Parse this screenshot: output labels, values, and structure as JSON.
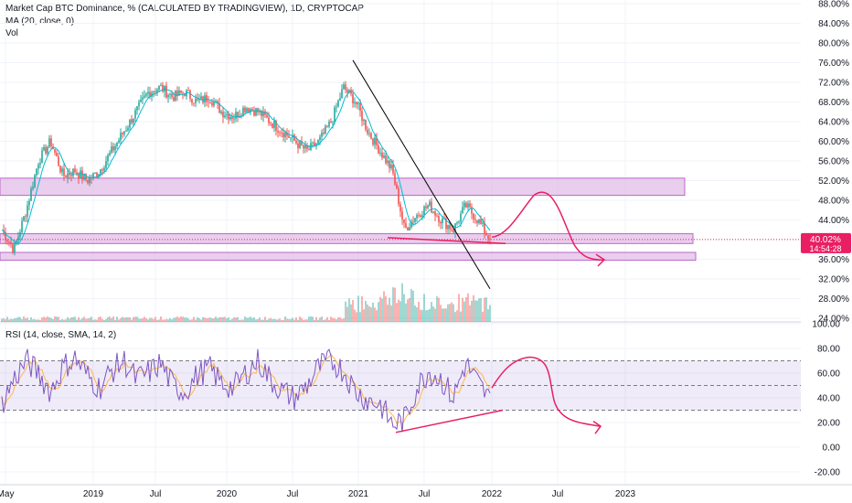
{
  "header": {
    "title": "Market Cap BTC Dominance, % (CALCULATED BY TRADINGVIEW), 1D, CRYPTOCAP",
    "ma_label": "MA (20, close, 0)",
    "vol_label": "Vol"
  },
  "rsi_header": "RSI (14, close, SMA, 14, 2)",
  "price_badge": {
    "value": "40.02%",
    "countdown": "14:54:28",
    "color": "#e91e63"
  },
  "colors": {
    "candle_up": "#26a69a",
    "candle_down": "#ef5350",
    "ma": "#00bcd4",
    "rsi_line": "#7e57c2",
    "rsi_ma": "#ffb74d",
    "zone_fill": "#e1bee7",
    "zone_stroke": "#ba68c8",
    "drawing": "#e91e63",
    "trendline": "#000000"
  },
  "chart_data": [
    {
      "type": "line",
      "title": "Market Cap BTC Dominance, % (CALCULATED BY TRADINGVIEW), 1D, CRYPTOCAP",
      "ylim": [
        24,
        88
      ],
      "yticks": [
        "88.00%",
        "84.00%",
        "80.00%",
        "76.00%",
        "72.00%",
        "68.00%",
        "64.00%",
        "60.00%",
        "56.00%",
        "52.00%",
        "48.00%",
        "44.00%",
        "40.00%",
        "36.00%",
        "32.00%",
        "28.00%",
        "24.00%"
      ],
      "xticks": [
        "May",
        "2019",
        "Jul",
        "2020",
        "Jul",
        "2021",
        "Jul",
        "2022",
        "Jul",
        "2023"
      ],
      "series": [
        {
          "name": "BTC Dominance",
          "x": [
            "2018-05",
            "2018-06",
            "2018-08",
            "2018-09",
            "2018-10",
            "2018-11",
            "2018-12",
            "2019-02",
            "2019-03",
            "2019-04",
            "2019-05",
            "2019-06",
            "2019-07",
            "2019-08",
            "2019-09",
            "2019-10",
            "2019-11",
            "2019-12",
            "2020-02",
            "2020-03",
            "2020-04",
            "2020-05",
            "2020-06",
            "2020-07",
            "2020-08",
            "2020-09",
            "2020-10",
            "2020-11",
            "2020-12",
            "2021-01",
            "2021-02",
            "2021-03",
            "2021-04",
            "2021-05",
            "2021-06",
            "2021-07",
            "2021-08",
            "2021-09",
            "2021-10",
            "2021-11",
            "2021-12"
          ],
          "values": [
            42,
            38,
            46,
            56,
            60,
            53,
            54,
            52,
            54,
            58,
            62,
            66,
            70,
            71,
            69,
            70,
            68,
            69,
            66,
            65,
            67,
            66,
            64,
            62,
            60,
            58,
            60,
            64,
            71,
            68,
            62,
            58,
            54,
            42,
            45,
            47,
            44,
            42,
            47,
            44,
            40.02
          ]
        }
      ],
      "annotations": {
        "resistance_zone": [
          49,
          52.5
        ],
        "support_zone": [
          39.2,
          41.2
        ],
        "lower_zone": [
          35.8,
          37.4
        ],
        "price_line": 40.02
      }
    },
    {
      "type": "line",
      "title": "RSI (14, close, SMA, 14, 2)",
      "ylim": [
        -20,
        100
      ],
      "yticks": [
        "100.00",
        "80.00",
        "60.00",
        "40.00",
        "20.00",
        "0.00",
        "-20.00"
      ],
      "bands": {
        "upper": 70,
        "middle": 50,
        "lower": 30
      },
      "series": [
        {
          "name": "RSI",
          "values": [
            35,
            55,
            70,
            60,
            45,
            65,
            72,
            58,
            48,
            62,
            70,
            55,
            60,
            68,
            50,
            45,
            58,
            64,
            52,
            48,
            60,
            70,
            55,
            45,
            40,
            50,
            65,
            70,
            62,
            45,
            38,
            35,
            18,
            22,
            48,
            62,
            55,
            40,
            68,
            52,
            38
          ]
        }
      ]
    }
  ]
}
